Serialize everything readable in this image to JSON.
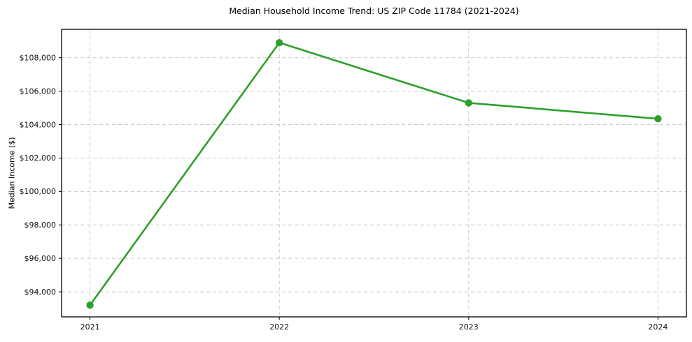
{
  "figure": {
    "background": "#ffffff"
  },
  "chart_data": {
    "type": "line",
    "title": "Median Household Income Trend: US ZIP Code 11784 (2021-2024)",
    "xlabel": "",
    "ylabel": "Median Income ($)",
    "x": [
      2021,
      2022,
      2023,
      2024
    ],
    "xtick_labels": [
      "2021",
      "2022",
      "2023",
      "2024"
    ],
    "series": [
      {
        "values": [
          93200,
          108900,
          105300,
          104350
        ],
        "color": "#2ca02c",
        "marker": "circle",
        "line_width": 2.6,
        "marker_radius": 5.2
      }
    ],
    "xlim": [
      2020.85,
      2024.15
    ],
    "ylim": [
      92500,
      109700
    ],
    "yticks": [
      94000,
      96000,
      98000,
      100000,
      102000,
      104000,
      106000,
      108000
    ],
    "ytick_labels": [
      "$94,000",
      "$96,000",
      "$98,000",
      "$100,000",
      "$102,000",
      "$104,000",
      "$106,000",
      "$108,000"
    ],
    "grid": true,
    "grid_line_style": "dashed",
    "grid_color": "#c9c9c9",
    "legend": false,
    "axis_color": "#000000",
    "text_color": "#111111"
  }
}
